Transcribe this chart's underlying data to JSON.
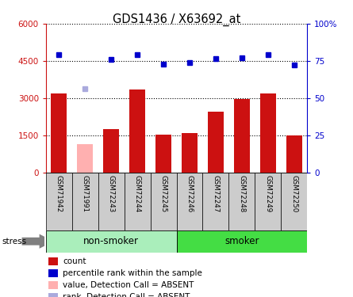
{
  "title": "GDS1436 / X63692_at",
  "samples": [
    "GSM71942",
    "GSM71991",
    "GSM72243",
    "GSM72244",
    "GSM72245",
    "GSM72246",
    "GSM72247",
    "GSM72248",
    "GSM72249",
    "GSM72250"
  ],
  "counts": [
    3200,
    null,
    1750,
    3350,
    1520,
    1580,
    2450,
    2950,
    3200,
    1480
  ],
  "absent_count": [
    null,
    1150,
    null,
    null,
    null,
    null,
    null,
    null,
    null,
    null
  ],
  "percentile_ranks": [
    4750,
    null,
    4550,
    4750,
    4380,
    4430,
    4600,
    4620,
    4750,
    4350
  ],
  "absent_rank": [
    null,
    3380,
    null,
    null,
    null,
    null,
    null,
    null,
    null,
    null
  ],
  "ylim_left": [
    0,
    6000
  ],
  "ylim_right": [
    0,
    100
  ],
  "yticks_left": [
    0,
    1500,
    3000,
    4500,
    6000
  ],
  "ytick_labels_left": [
    "0",
    "1500",
    "3000",
    "4500",
    "6000"
  ],
  "yticks_right": [
    0,
    25,
    50,
    75,
    100
  ],
  "ytick_labels_right": [
    "0",
    "25",
    "50",
    "75",
    "100%"
  ],
  "bar_color_present": "#cc1111",
  "bar_color_absent": "#ffb0b0",
  "rank_color_present": "#0000cc",
  "rank_color_absent": "#aaaadd",
  "nonsmoker_color": "#aaeebb",
  "smoker_color": "#44dd44",
  "left_axis_color": "#cc1111",
  "right_axis_color": "#0000cc",
  "grid_color": "#000000",
  "bg_color": "#ffffff",
  "label_bg_color": "#cccccc",
  "nonsmoker_count": 5,
  "smoker_count": 5
}
